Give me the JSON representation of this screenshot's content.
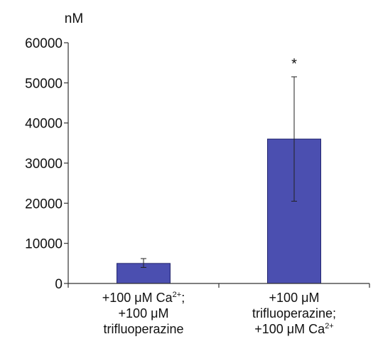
{
  "chart_data": {
    "type": "bar",
    "unit_label": "nM",
    "categories": [
      {
        "lines": [
          [
            {
              "t": "+100 μM Ca"
            },
            {
              "t": "2+",
              "sup": true
            },
            {
              "t": ";"
            }
          ],
          [
            {
              "t": "+100 μM"
            }
          ],
          [
            {
              "t": "trifluoperazine"
            }
          ]
        ]
      },
      {
        "lines": [
          [
            {
              "t": "+100 μM"
            }
          ],
          [
            {
              "t": "trifluoperazine;"
            }
          ],
          [
            {
              "t": "+100 μM Ca"
            },
            {
              "t": "2+",
              "sup": true
            }
          ]
        ]
      }
    ],
    "values": [
      5000,
      36000
    ],
    "error_low": [
      4000,
      20500
    ],
    "error_high": [
      6200,
      51500
    ],
    "annotations": [
      "",
      "*"
    ],
    "ylim": [
      0,
      60000
    ],
    "yticks": [
      0,
      10000,
      20000,
      30000,
      40000,
      50000,
      60000
    ],
    "ytick_labels": [
      "0",
      "10000",
      "20000",
      "30000",
      "40000",
      "50000",
      "60000"
    ],
    "colors": {
      "bar_fill": "#4b4fb0",
      "bar_edge": "#23266e",
      "axis": "#333333"
    },
    "grid": false,
    "legend": "none"
  }
}
